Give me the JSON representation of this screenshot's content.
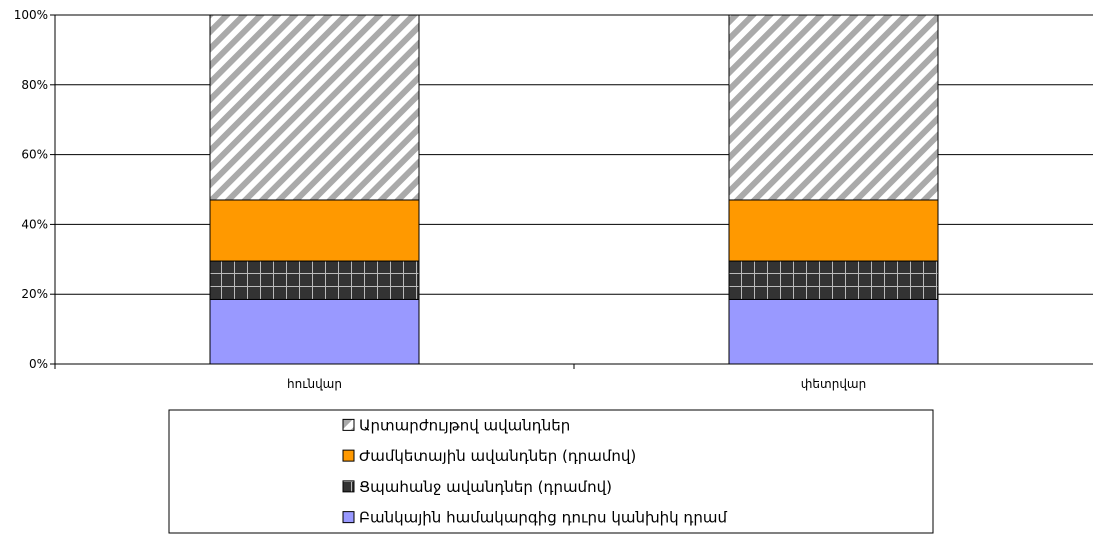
{
  "chart_data": {
    "type": "bar",
    "stacked": true,
    "percent": true,
    "categories": [
      "հունվար",
      "փետրվար"
    ],
    "ylim": [
      0,
      100
    ],
    "yticks": [
      "0%",
      "20%",
      "40%",
      "60%",
      "80%",
      "100%"
    ],
    "grid": true,
    "legend_position": "bottom",
    "series": [
      {
        "name": "Բանկային համակարգից դուրս կանխիկ դրամ",
        "values": [
          18.5,
          18.5
        ],
        "color": "#9999ff",
        "pattern": "solid"
      },
      {
        "name": "Ցպահանջ ավանդներ (դրամով)",
        "values": [
          11,
          11
        ],
        "color": "#333333",
        "pattern": "grid"
      },
      {
        "name": "Ժամկետային ավանդներ (դրամով)",
        "values": [
          17.5,
          17.5
        ],
        "color": "#ff9900",
        "pattern": "solid"
      },
      {
        "name": "Արտարժույթով ավանդներ",
        "values": [
          53,
          53
        ],
        "color": "#aaaaaa",
        "pattern": "diagonal"
      }
    ]
  }
}
